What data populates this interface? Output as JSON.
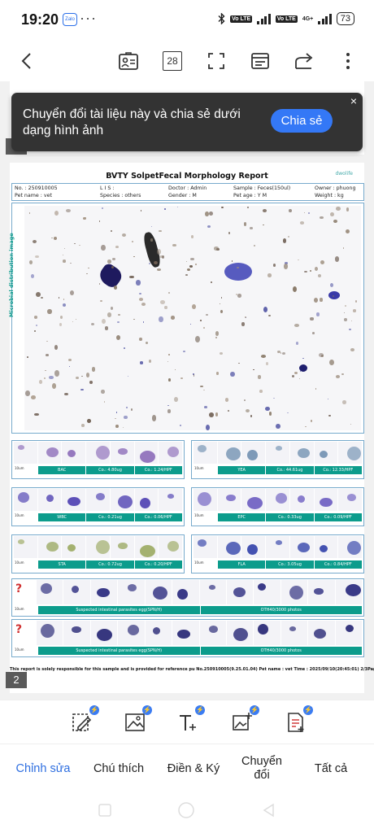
{
  "status_bar": {
    "time": "19:20",
    "zalo_label": "Zalo",
    "dots": "···",
    "volte1": "Vo LTE",
    "volte2": "Vo LTE",
    "net": "4G+",
    "battery": "73"
  },
  "toolbar": {
    "page_count": "28"
  },
  "toast": {
    "message": "Chuyển đổi tài liệu này và chia sẻ dưới dạng hình ảnh",
    "button": "Chia sẻ",
    "close": "×"
  },
  "report": {
    "title": "BVTY SolpetFecal Morphology Report",
    "logo": "dwolife",
    "info": {
      "no": "No. : 250910005",
      "lis": "L I S :",
      "doctor": "Doctor : Admin",
      "sample": "Sample : Feces(150ul)",
      "owner": "Owner : phuong",
      "pet_name": "Pet name : vet",
      "species": "Species : others",
      "gender": "Gender : M",
      "pet_age": "Pet age : Y M",
      "weight": "Weight : kg"
    },
    "micro_label": "Microbial distribution image",
    "panels": [
      {
        "name": "BAC",
        "conc": "Co.: 4.80ug",
        "count": "Co.: 1.24/HPF"
      },
      {
        "name": "YEA",
        "conc": "Co.: 44.61ug",
        "count": "Co.: 12.33/HPF"
      },
      {
        "name": "WBC",
        "conc": "Co.: 0.21ug",
        "count": "Co.: 0.06/HPF"
      },
      {
        "name": "EPC",
        "conc": "Co.: 0.33ug",
        "count": "Co.: 0.09/HPF"
      },
      {
        "name": "STA",
        "conc": "Co.: 0.72ug",
        "count": "Co.: 0.20/HPF"
      },
      {
        "name": "FLA",
        "conc": "Co.: 3.05ug",
        "count": "Co.: 0.84/HPF"
      }
    ],
    "parasite_rows": [
      {
        "label": "Suspected intestinal parasites egg(SPN/H)",
        "other": "OTH40/3000 photos"
      },
      {
        "label": "Suspected intestinal parasites egg(SPN/H)",
        "other": "OTH40/3000 photos"
      }
    ],
    "scale_label": "10um",
    "footer": "This report is solely responsible for this sample and is provided for reference pu No.250910005(9.25.01.04) Pet name : vet Time : 2025/09/10(20:45:01) 2/3Page"
  },
  "page_indicator_prev": "",
  "page_indicator": "2",
  "bottom_tabs": [
    "Chỉnh sửa",
    "Chú thích",
    "Điền & Ký",
    "Chuyển đổi",
    "Tất cả"
  ],
  "colors": {
    "accent": "#3478f6",
    "teal": "#0c9c8c",
    "toast_bg": "#333333"
  }
}
